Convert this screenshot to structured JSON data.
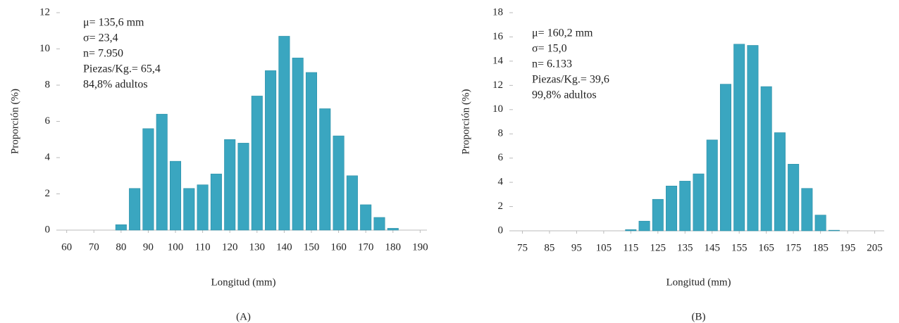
{
  "chart_data": [
    {
      "type": "bar",
      "caption": "(A)",
      "xlabel": "Longitud (mm)",
      "ylabel": "Proporción (%)",
      "annotations": [
        "μ= 135,6 mm",
        "σ= 23,4",
        "n= 7.950",
        "Piezas/Kg.= 65,4",
        "84,8% adultos"
      ],
      "x": [
        80,
        85,
        90,
        95,
        100,
        105,
        110,
        115,
        120,
        125,
        130,
        135,
        140,
        145,
        150,
        155,
        160,
        165,
        170,
        175,
        180
      ],
      "values": [
        0.3,
        2.3,
        5.6,
        6.4,
        3.8,
        2.3,
        2.5,
        3.1,
        5.0,
        4.8,
        7.4,
        8.8,
        10.7,
        9.5,
        8.7,
        6.7,
        5.2,
        3.0,
        1.4,
        0.7,
        0.1
      ],
      "color": "#3aa6c0",
      "xlim": [
        57.5,
        192.5
      ],
      "xticks": [
        60,
        70,
        80,
        90,
        100,
        110,
        120,
        130,
        140,
        150,
        160,
        170,
        180,
        190
      ],
      "ylim": [
        0,
        12
      ],
      "yticks": [
        0,
        2,
        4,
        6,
        8,
        10,
        12
      ]
    },
    {
      "type": "bar",
      "caption": "(B)",
      "xlabel": "Longitud (mm)",
      "ylabel": "Proporción (%)",
      "annotations": [
        "μ= 160,2 mm",
        "σ= 15,0",
        "n= 6.133",
        "Piezas/Kg.= 39,6",
        "99,8% adultos"
      ],
      "x": [
        115,
        120,
        125,
        130,
        135,
        140,
        145,
        150,
        155,
        160,
        165,
        170,
        175,
        180,
        185,
        190
      ],
      "values": [
        0.1,
        0.8,
        2.6,
        3.7,
        4.1,
        4.7,
        7.5,
        12.1,
        15.4,
        15.3,
        11.9,
        8.1,
        5.5,
        3.5,
        1.3,
        0.05
      ],
      "color": "#3aa6c0",
      "xlim": [
        71.5,
        208.5
      ],
      "xticks": [
        75,
        85,
        95,
        105,
        115,
        125,
        135,
        145,
        155,
        165,
        175,
        185,
        195,
        205
      ],
      "ylim": [
        0,
        18
      ],
      "yticks": [
        0,
        2,
        4,
        6,
        8,
        10,
        12,
        14,
        16,
        18
      ]
    }
  ]
}
